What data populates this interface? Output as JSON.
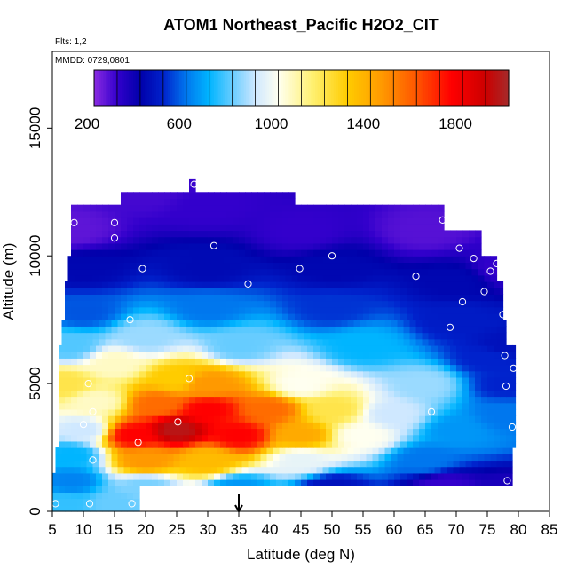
{
  "chart_data": {
    "type": "heatmap",
    "title": "ATOM1 Northeast_Pacific H2O2_CIT",
    "annotations": [
      "Flts: 1,2",
      "MMDD: 0729,0801"
    ],
    "xlabel": "Latitude (deg N)",
    "ylabel": "Altitude (m)",
    "xlim": [
      5,
      85
    ],
    "ylim": [
      0,
      18000
    ],
    "x_ticks": [
      "5",
      "10",
      "15",
      "20",
      "25",
      "30",
      "35",
      "40",
      "45",
      "50",
      "55",
      "60",
      "65",
      "70",
      "75",
      "80",
      "85"
    ],
    "x_tick_values": [
      5,
      10,
      15,
      20,
      25,
      30,
      35,
      40,
      45,
      50,
      55,
      60,
      65,
      70,
      75,
      80,
      85
    ],
    "y_ticks": [
      "0",
      "5000",
      "10000",
      "15000"
    ],
    "y_tick_values": [
      0,
      5000,
      10000,
      15000
    ],
    "grid": false,
    "colorbar": {
      "range": [
        200,
        2000
      ],
      "tick_labels": [
        "200",
        "600",
        "1000",
        "1400",
        "1800"
      ],
      "tick_values": [
        200,
        600,
        1000,
        1400,
        1800
      ],
      "colors": [
        "#8a2be2",
        "#3300cc",
        "#0000aa",
        "#0022cc",
        "#0077ee",
        "#00b5ff",
        "#66ccff",
        "#cfe8ff",
        "#fffff0",
        "#fff070",
        "#ffcc00",
        "#ff9900",
        "#ff5500",
        "#ff0000",
        "#cc0000",
        "#a52a2a"
      ],
      "value_nodes": [
        200,
        300,
        400,
        500,
        600,
        700,
        800,
        900,
        1000,
        1150,
        1300,
        1450,
        1600,
        1750,
        1900,
        2000
      ]
    },
    "arrow_marker": {
      "x": 35
    },
    "field_anchors": {
      "description_units": "latitude deg N, altitude m, H2O2 value",
      "points": [
        [
          8,
          11000,
          250
        ],
        [
          20,
          12500,
          280
        ],
        [
          30,
          12000,
          300
        ],
        [
          45,
          11000,
          300
        ],
        [
          65,
          11000,
          260
        ],
        [
          78,
          9500,
          300
        ],
        [
          10,
          9500,
          420
        ],
        [
          30,
          9500,
          430
        ],
        [
          50,
          9500,
          420
        ],
        [
          70,
          9000,
          420
        ],
        [
          10,
          7800,
          560
        ],
        [
          30,
          8000,
          600
        ],
        [
          50,
          8000,
          520
        ],
        [
          70,
          7500,
          480
        ],
        [
          78,
          6500,
          450
        ],
        [
          8,
          6500,
          780
        ],
        [
          20,
          6800,
          850
        ],
        [
          35,
          6500,
          800
        ],
        [
          55,
          6500,
          700
        ],
        [
          75,
          6000,
          500
        ],
        [
          7,
          5000,
          1200
        ],
        [
          15,
          5800,
          1050
        ],
        [
          25,
          5200,
          1300
        ],
        [
          30,
          5000,
          1450
        ],
        [
          45,
          5000,
          1000
        ],
        [
          65,
          5000,
          850
        ],
        [
          78,
          5000,
          500
        ],
        [
          12,
          4300,
          1050
        ],
        [
          22,
          4200,
          1550
        ],
        [
          30,
          4000,
          1750
        ],
        [
          40,
          4000,
          1550
        ],
        [
          50,
          4000,
          1200
        ],
        [
          60,
          3800,
          900
        ],
        [
          78,
          3800,
          600
        ],
        [
          10,
          3200,
          900
        ],
        [
          18,
          3000,
          1750
        ],
        [
          25,
          3200,
          1950
        ],
        [
          35,
          3000,
          1750
        ],
        [
          45,
          3000,
          1400
        ],
        [
          55,
          3000,
          1000
        ],
        [
          70,
          3200,
          650
        ],
        [
          8,
          2200,
          700
        ],
        [
          20,
          2000,
          1450
        ],
        [
          30,
          2000,
          1350
        ],
        [
          45,
          2000,
          950
        ],
        [
          65,
          2000,
          600
        ],
        [
          8,
          1200,
          620
        ],
        [
          20,
          1000,
          820
        ],
        [
          35,
          900,
          650
        ],
        [
          50,
          900,
          450
        ],
        [
          68,
          1000,
          300
        ],
        [
          78,
          800,
          350
        ],
        [
          7,
          300,
          750
        ],
        [
          15,
          300,
          800
        ]
      ]
    },
    "sample_points": {
      "lat": [
        5.5,
        8.5,
        11.5,
        15.0,
        15.0,
        10.8,
        11.5,
        10.0,
        17.8,
        11.0,
        18.8,
        19.5,
        17.5,
        25.2,
        27.0,
        27.8,
        31.0,
        36.5,
        44.8,
        50.0,
        63.5,
        66.0,
        67.8,
        69.0,
        70.5,
        71.0,
        72.8,
        74.5,
        75.5,
        76.5,
        77.5,
        77.8,
        78.0,
        78.2,
        78.5,
        79.0,
        79.2
      ],
      "alt": [
        300,
        11300,
        2000,
        11300,
        10700,
        5000,
        3900,
        3400,
        300,
        300,
        2700,
        9500,
        7500,
        3500,
        5200,
        12800,
        10400,
        8900,
        9500,
        10000,
        9200,
        3900,
        11400,
        7200,
        10300,
        8200,
        9900,
        8600,
        9400,
        9700,
        7700,
        6100,
        4900,
        1200,
        800,
        3300,
        5600
      ]
    }
  }
}
